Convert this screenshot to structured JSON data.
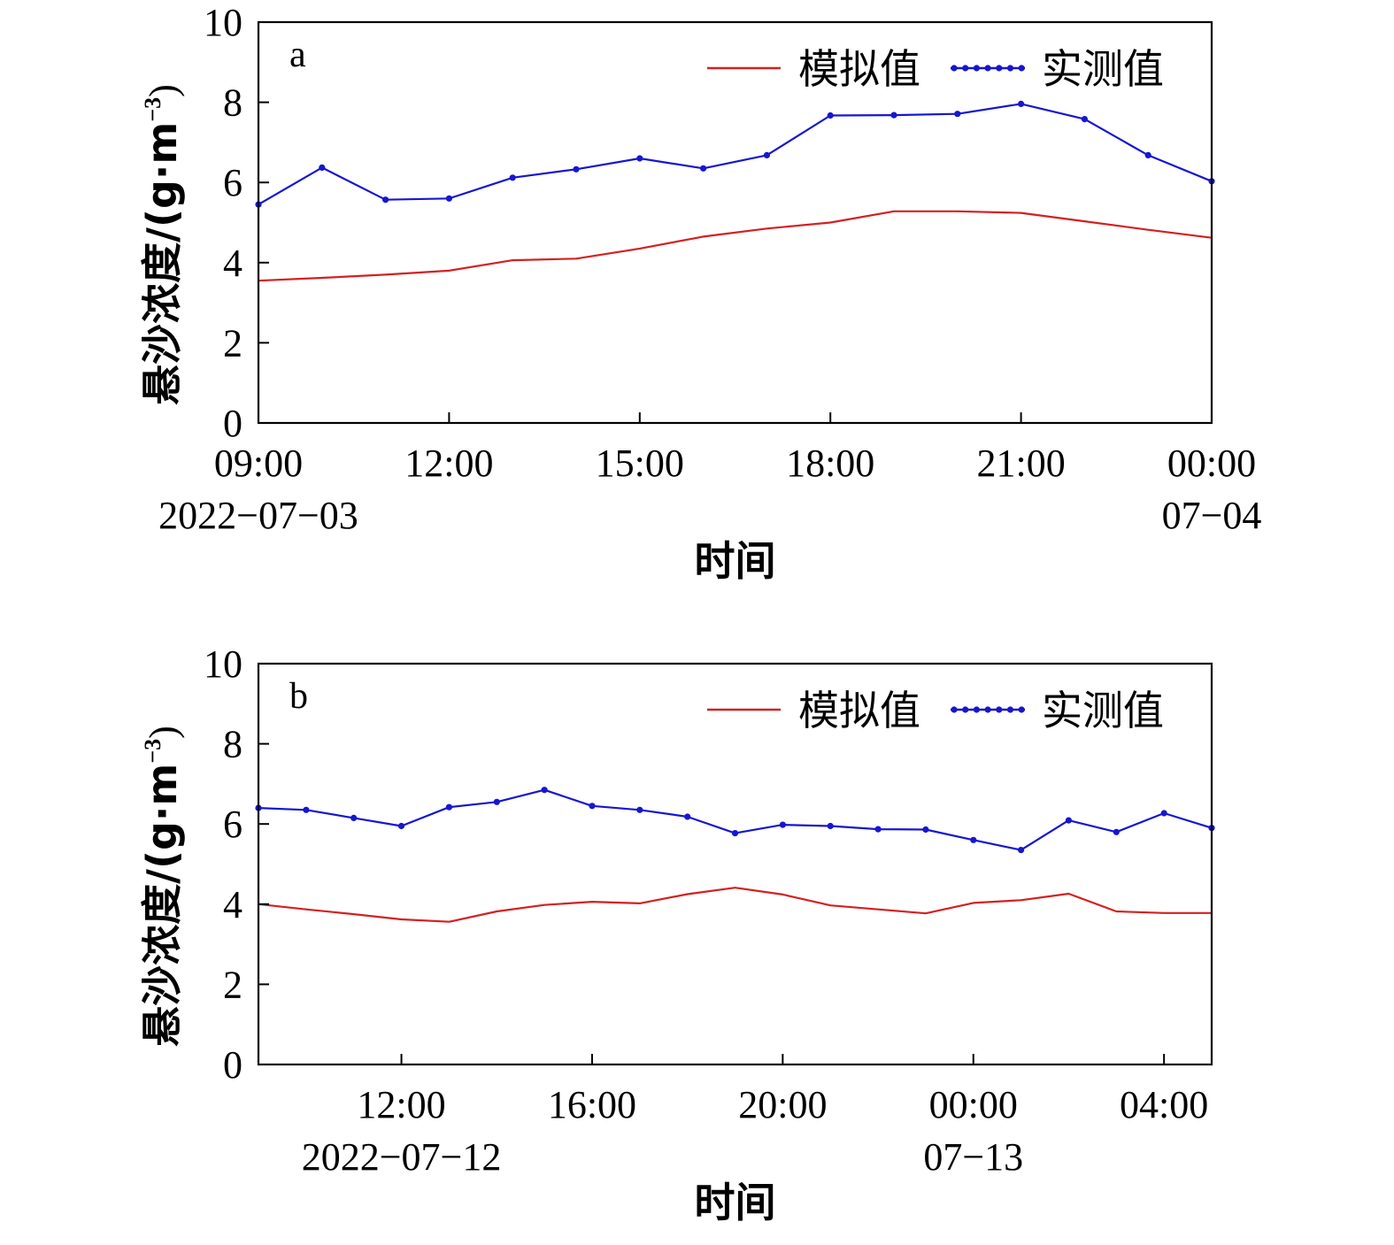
{
  "legend": {
    "sim": "模拟值",
    "obs": "实测值"
  },
  "colors": {
    "sim": "#d42020",
    "obs": "#1616d0",
    "axis": "#000000"
  },
  "chart_data": [
    {
      "type": "line",
      "panel_label": "a",
      "xlabel": "时间",
      "ylabel_main": "悬沙浓度/(g·m",
      "ylabel_sup": "−3",
      "ylabel_close": ")",
      "ylim": [
        0,
        10
      ],
      "yticks": [
        0,
        2,
        4,
        6,
        8,
        10
      ],
      "xlim": [
        9,
        24
      ],
      "xticks": [
        {
          "x": 9,
          "label": "09:00",
          "date": "2022−07−03"
        },
        {
          "x": 12,
          "label": "12:00",
          "date": ""
        },
        {
          "x": 15,
          "label": "15:00",
          "date": ""
        },
        {
          "x": 18,
          "label": "18:00",
          "date": ""
        },
        {
          "x": 21,
          "label": "21:00",
          "date": ""
        },
        {
          "x": 24,
          "label": "00:00",
          "date": "07−04"
        }
      ],
      "legend_position": "top-right",
      "grid": false,
      "series": [
        {
          "name": "模拟值",
          "key": "sim",
          "x": [
            9,
            10,
            11,
            12,
            13,
            14,
            15,
            16,
            17,
            18,
            19,
            20,
            21,
            22,
            23,
            24
          ],
          "values": [
            3.55,
            3.62,
            3.7,
            3.8,
            4.06,
            4.1,
            4.35,
            4.65,
            4.85,
            5.0,
            5.28,
            5.28,
            5.24,
            5.03,
            4.82,
            4.62
          ]
        },
        {
          "name": "实测值",
          "key": "obs",
          "x": [
            9,
            10,
            11,
            12,
            13,
            14,
            15,
            16,
            17,
            18,
            19,
            20,
            21,
            22,
            23,
            24
          ],
          "values": [
            5.45,
            6.37,
            5.57,
            5.6,
            6.12,
            6.33,
            6.6,
            6.35,
            6.68,
            7.67,
            7.68,
            7.71,
            7.96,
            7.58,
            6.68,
            6.03
          ]
        }
      ]
    },
    {
      "type": "line",
      "panel_label": "b",
      "xlabel": "时间",
      "ylabel_main": "悬沙浓度/(g·m",
      "ylabel_sup": "−3",
      "ylabel_close": ")",
      "ylim": [
        0,
        10
      ],
      "yticks": [
        0,
        2,
        4,
        6,
        8,
        10
      ],
      "xlim": [
        9,
        29
      ],
      "xticks": [
        {
          "x": 12,
          "label": "12:00",
          "date": "2022−07−12"
        },
        {
          "x": 16,
          "label": "16:00",
          "date": ""
        },
        {
          "x": 20,
          "label": "20:00",
          "date": ""
        },
        {
          "x": 24,
          "label": "00:00",
          "date": "07−13"
        },
        {
          "x": 28,
          "label": "04:00",
          "date": ""
        }
      ],
      "legend_position": "top-right",
      "grid": false,
      "series": [
        {
          "name": "模拟值",
          "key": "sim",
          "x": [
            9,
            10,
            11,
            12,
            13,
            14,
            15,
            16,
            17,
            18,
            19,
            20,
            21,
            22,
            23,
            24,
            25,
            26,
            27,
            28,
            29
          ],
          "values": [
            4.0,
            3.87,
            3.75,
            3.62,
            3.56,
            3.82,
            3.98,
            4.06,
            4.02,
            4.25,
            4.41,
            4.24,
            3.97,
            3.87,
            3.77,
            4.03,
            4.1,
            4.26,
            3.82,
            3.78,
            3.78
          ]
        },
        {
          "name": "实测值",
          "key": "obs",
          "x": [
            9,
            10,
            11,
            12,
            13,
            14,
            15,
            16,
            17,
            18,
            19,
            20,
            21,
            22,
            23,
            24,
            25,
            26,
            27,
            28,
            29
          ],
          "values": [
            6.4,
            6.35,
            6.15,
            5.95,
            6.42,
            6.55,
            6.85,
            6.45,
            6.35,
            6.18,
            5.77,
            5.98,
            5.95,
            5.87,
            5.86,
            5.6,
            5.35,
            6.09,
            5.8,
            6.27,
            5.9
          ]
        }
      ]
    }
  ]
}
